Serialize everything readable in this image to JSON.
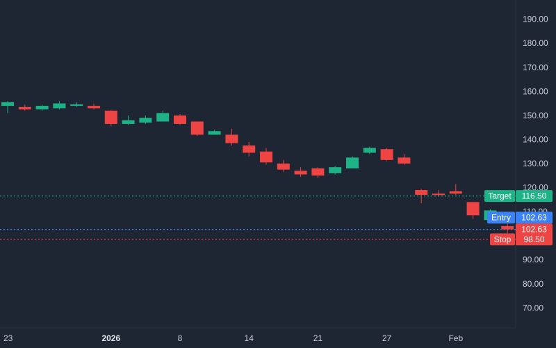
{
  "chart_data": {
    "type": "candlestick",
    "colors": {
      "background": "#1f2633",
      "up": "#1db386",
      "down": "#ef4444",
      "axis_text": "#c9ced6",
      "target": "#1db386",
      "entry": "#3b82f6",
      "stop": "#ef4444"
    },
    "ylim": [
      62,
      198
    ],
    "y_ticks": [
      "190.00",
      "180.00",
      "170.00",
      "160.00",
      "150.00",
      "140.00",
      "130.00",
      "120.00",
      "110.00",
      "90.00",
      "80.00",
      "70.00"
    ],
    "y_tick_values": [
      190,
      180,
      170,
      160,
      150,
      140,
      130,
      120,
      110,
      90,
      80,
      70
    ],
    "x_ticks": [
      {
        "label": "23",
        "index": 0,
        "bold": false
      },
      {
        "label": "2026",
        "index": 6,
        "bold": true
      },
      {
        "label": "8",
        "index": 10,
        "bold": false
      },
      {
        "label": "14",
        "index": 14,
        "bold": false
      },
      {
        "label": "21",
        "index": 18,
        "bold": false
      },
      {
        "label": "27",
        "index": 22,
        "bold": false
      },
      {
        "label": "Feb",
        "index": 26,
        "bold": false
      }
    ],
    "candles": [
      {
        "o": 154,
        "h": 156,
        "l": 151,
        "c": 155.5
      },
      {
        "o": 153.5,
        "h": 154.5,
        "l": 152,
        "c": 152.5
      },
      {
        "o": 152.5,
        "h": 154.5,
        "l": 152,
        "c": 154
      },
      {
        "o": 153,
        "h": 156,
        "l": 152.5,
        "c": 155
      },
      {
        "o": 154,
        "h": 155.5,
        "l": 153.5,
        "c": 154.6
      },
      {
        "o": 154,
        "h": 154.8,
        "l": 152.5,
        "c": 153
      },
      {
        "o": 152,
        "h": 152.2,
        "l": 145.5,
        "c": 146.5
      },
      {
        "o": 146.5,
        "h": 150,
        "l": 146,
        "c": 148
      },
      {
        "o": 147,
        "h": 150,
        "l": 146.5,
        "c": 149
      },
      {
        "o": 147.5,
        "h": 152,
        "l": 147.5,
        "c": 151
      },
      {
        "o": 150,
        "h": 150.5,
        "l": 146,
        "c": 146.5
      },
      {
        "o": 147.5,
        "h": 147.5,
        "l": 141.5,
        "c": 142
      },
      {
        "o": 142,
        "h": 144,
        "l": 142,
        "c": 143.5
      },
      {
        "o": 142,
        "h": 144.5,
        "l": 137.5,
        "c": 138.5
      },
      {
        "o": 137.5,
        "h": 139,
        "l": 133,
        "c": 134.5
      },
      {
        "o": 135,
        "h": 136.5,
        "l": 129.5,
        "c": 130.5
      },
      {
        "o": 130,
        "h": 131.5,
        "l": 126.5,
        "c": 127.5
      },
      {
        "o": 127,
        "h": 128.5,
        "l": 124.5,
        "c": 125.5
      },
      {
        "o": 128,
        "h": 128.5,
        "l": 124,
        "c": 125
      },
      {
        "o": 126,
        "h": 129,
        "l": 125.5,
        "c": 128.5
      },
      {
        "o": 128,
        "h": 133,
        "l": 128,
        "c": 132.5
      },
      {
        "o": 134.5,
        "h": 137,
        "l": 134,
        "c": 136.5
      },
      {
        "o": 136,
        "h": 136.5,
        "l": 131,
        "c": 131.5
      },
      {
        "o": 132.5,
        "h": 134,
        "l": 129.5,
        "c": 130
      },
      {
        "o": 119,
        "h": 119.5,
        "l": 113.5,
        "c": 117
      },
      {
        "o": 117.5,
        "h": 119,
        "l": 116.5,
        "c": 117
      },
      {
        "o": 118.5,
        "h": 121.5,
        "l": 117,
        "c": 117.5
      },
      {
        "o": 114,
        "h": 114,
        "l": 107,
        "c": 108.5
      },
      {
        "o": 106.5,
        "h": 111,
        "l": 106,
        "c": 110.5
      },
      {
        "o": 104,
        "h": 106,
        "l": 101,
        "c": 102.63
      }
    ],
    "levels": [
      {
        "name": "Target",
        "value": 116.5,
        "price_label": "116.50",
        "color_key": "target"
      },
      {
        "name": "Entry",
        "value": 102.63,
        "price_label": "102.63",
        "color_key": "entry"
      },
      {
        "name": "Stop",
        "value": 98.5,
        "price_label": "98.50",
        "color_key": "stop"
      }
    ],
    "last_price": {
      "value": 102.63,
      "label": "102.63"
    }
  }
}
